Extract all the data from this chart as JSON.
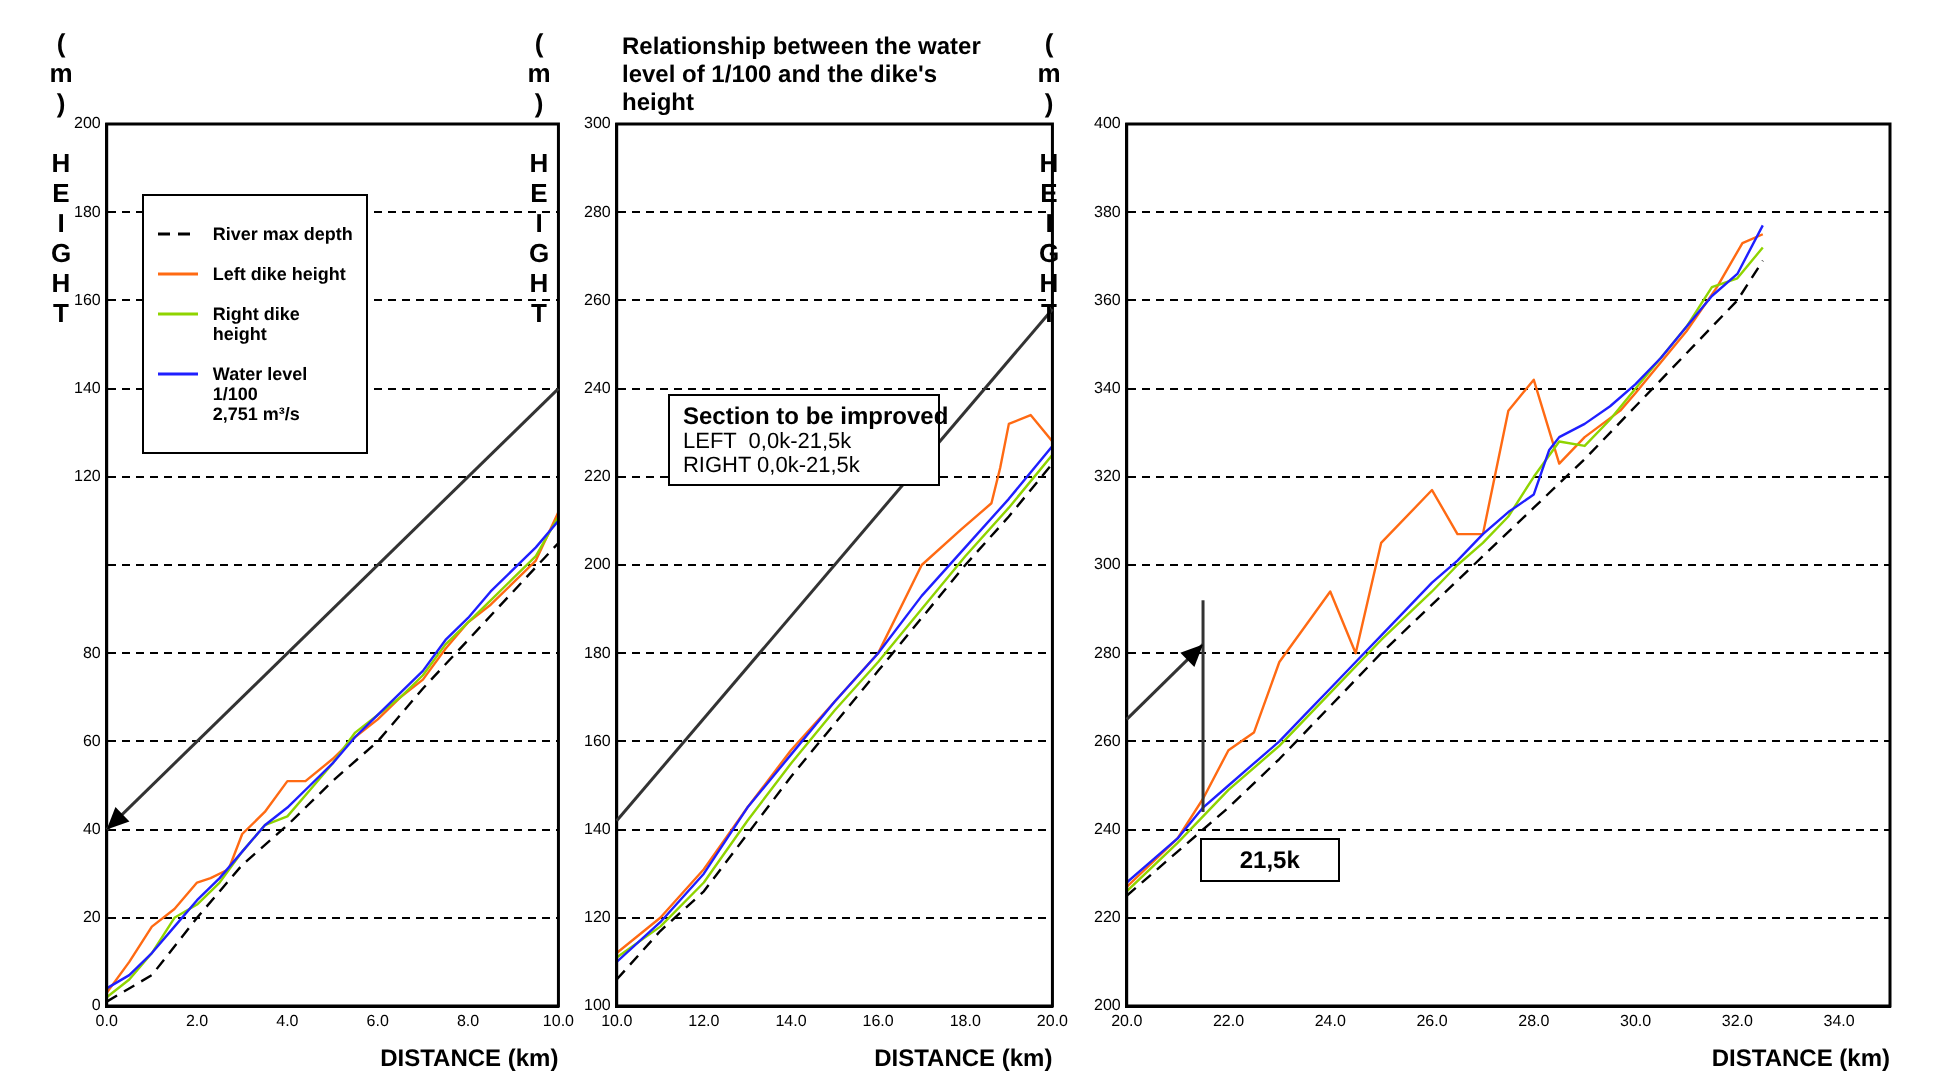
{
  "chart_data": [
    {
      "type": "line",
      "xlabel": "DISTANCE (km)",
      "ylabel": "(m) HEIGHT",
      "xlim": [
        0,
        10
      ],
      "ylim": [
        0,
        200
      ],
      "xticks": [
        {
          "value": 0,
          "label": "0.0"
        },
        {
          "value": 2,
          "label": "2.0"
        },
        {
          "value": 4,
          "label": "4.0"
        },
        {
          "value": 6,
          "label": "6.0"
        },
        {
          "value": 8,
          "label": "8.0"
        },
        {
          "value": 10,
          "label": "10.0"
        }
      ],
      "yticks": [
        0,
        20,
        40,
        60,
        80,
        {
          "value": 100,
          "label": null
        },
        120,
        140,
        160,
        180,
        200
      ],
      "grid": "y",
      "legend": "top left",
      "series": [
        {
          "name": "River max depth",
          "color": "#000000",
          "line_style": "dashed",
          "x": [
            0,
            1,
            2,
            3,
            4,
            5,
            6,
            7,
            8,
            9,
            10
          ],
          "values": [
            1,
            7,
            20,
            32,
            41,
            51,
            60,
            72,
            83,
            94,
            105
          ]
        },
        {
          "name": "Left dike height",
          "color": "#ff6a13",
          "x": [
            0,
            0.5,
            1,
            1.5,
            2,
            2.3,
            2.7,
            3,
            3.5,
            4,
            4.4,
            5,
            5.5,
            6,
            6.5,
            7,
            7.5,
            8,
            8.5,
            9,
            9.5,
            10
          ],
          "values": [
            3,
            10,
            18,
            22,
            28,
            29,
            31,
            39,
            44,
            51,
            51,
            56,
            61,
            65,
            70,
            74,
            81,
            87,
            91,
            96,
            101,
            112
          ]
        },
        {
          "name": "Right dike height",
          "color": "#8fd400",
          "x": [
            0,
            0.5,
            1,
            1.5,
            2,
            2.5,
            3,
            3.5,
            4,
            4.5,
            5,
            5.5,
            6,
            6.5,
            7,
            7.5,
            8,
            8.5,
            9,
            9.5,
            10
          ],
          "values": [
            2,
            6,
            12,
            20,
            23,
            28,
            35,
            41,
            43,
            49,
            55,
            62,
            66,
            70,
            75,
            82,
            87,
            92,
            97,
            102,
            111
          ]
        },
        {
          "name": "Water level 1/100\n2,751 m³/s",
          "color": "#1f1fff",
          "x": [
            0,
            0.5,
            1,
            1.5,
            2,
            2.5,
            3,
            3.5,
            4,
            4.5,
            5,
            5.5,
            6,
            6.5,
            7,
            7.5,
            8,
            8.5,
            9,
            9.5,
            10
          ],
          "values": [
            4,
            7,
            12,
            18,
            24,
            29,
            35,
            41,
            45,
            50,
            55,
            61,
            66,
            71,
            76,
            83,
            88,
            94,
            99,
            104,
            110
          ]
        }
      ]
    },
    {
      "type": "line",
      "title": "Relationship between the water level of 1/100 and the dike's height",
      "xlabel": "DISTANCE (km)",
      "ylabel": "(m) HEIGHT",
      "xlim": [
        10,
        20
      ],
      "ylim": [
        100,
        300
      ],
      "xticks": [
        {
          "value": 10,
          "label": "10.0"
        },
        {
          "value": 12,
          "label": "12.0"
        },
        {
          "value": 14,
          "label": "14.0"
        },
        {
          "value": 16,
          "label": "16.0"
        },
        {
          "value": 18,
          "label": "18.0"
        },
        {
          "value": 20,
          "label": "20.0"
        }
      ],
      "yticks": [
        100,
        120,
        140,
        160,
        180,
        200,
        220,
        240,
        260,
        280,
        300
      ],
      "grid": "y",
      "annotations": [
        "Section to be improved",
        "LEFT  0,0k-21,5k",
        "RIGHT 0,0k-21,5k"
      ],
      "series": [
        {
          "color": "#000000",
          "line_style": "dashed",
          "x": [
            10,
            11,
            12,
            13,
            14,
            15,
            16,
            17,
            18,
            19,
            20
          ],
          "values": [
            106,
            117,
            126,
            139,
            152,
            164,
            176,
            188,
            200,
            211,
            223
          ]
        },
        {
          "color": "#ff6a13",
          "x": [
            10,
            11,
            12,
            13,
            14,
            15,
            16,
            16.1,
            17,
            17.9,
            18.6,
            18.8,
            19,
            19.5,
            20
          ],
          "values": [
            112,
            120,
            131,
            145,
            158,
            169,
            180,
            182,
            200,
            208,
            214,
            222,
            232,
            234,
            228
          ]
        },
        {
          "color": "#8fd400",
          "x": [
            10,
            11,
            12,
            13,
            14,
            15,
            16,
            17,
            18,
            19,
            20
          ],
          "values": [
            111,
            118,
            128,
            142,
            155,
            167,
            178,
            190,
            202,
            213,
            225
          ]
        },
        {
          "color": "#1f1fff",
          "x": [
            10,
            11,
            12,
            13,
            14,
            15,
            16,
            17,
            18,
            19,
            20
          ],
          "values": [
            110,
            119,
            130,
            145,
            157,
            169,
            180,
            193,
            204,
            215,
            227
          ]
        }
      ]
    },
    {
      "type": "line",
      "xlabel": "DISTANCE (km)",
      "ylabel": "(m) HEIGHT",
      "xlim": [
        20,
        35
      ],
      "ylim": [
        200,
        400
      ],
      "xticks": [
        {
          "value": 20,
          "label": "20.0"
        },
        {
          "value": 22,
          "label": "22.0"
        },
        {
          "value": 24,
          "label": "24.0"
        },
        {
          "value": 26,
          "label": "26.0"
        },
        {
          "value": 28,
          "label": "28.0"
        },
        {
          "value": 30,
          "label": "30.0"
        },
        {
          "value": 32,
          "label": "32.0"
        },
        {
          "value": 34,
          "label": "34.0"
        }
      ],
      "yticks": [
        200,
        220,
        240,
        260,
        280,
        300,
        320,
        340,
        360,
        380,
        400
      ],
      "grid": "y",
      "annotations": [
        "21,5k"
      ],
      "series": [
        {
          "color": "#000000",
          "line_style": "dashed",
          "x": [
            20,
            21,
            22,
            23,
            24,
            25,
            26,
            27,
            28,
            29,
            30,
            31,
            32,
            32.5
          ],
          "values": [
            225,
            235,
            245,
            256,
            268,
            280,
            291,
            302,
            313,
            324,
            336,
            348,
            360,
            369
          ]
        },
        {
          "color": "#ff6a13",
          "x": [
            20,
            21,
            21.5,
            22,
            22.5,
            23,
            24,
            24.5,
            25,
            26,
            26.5,
            27,
            27.5,
            28,
            28.5,
            29,
            29.7,
            30,
            31,
            31.6,
            32.1,
            32.5
          ],
          "values": [
            227,
            238,
            247,
            258,
            262,
            278,
            294,
            280,
            305,
            317,
            307,
            307,
            335,
            342,
            323,
            329,
            335,
            339,
            353,
            363,
            373,
            375
          ]
        },
        {
          "color": "#8fd400",
          "x": [
            20,
            21,
            22,
            23,
            24,
            25,
            26,
            26.5,
            27,
            27.5,
            28,
            28.5,
            29,
            29.5,
            30,
            30.5,
            31,
            31.5,
            32,
            32.5
          ],
          "values": [
            226,
            237,
            249,
            259,
            271,
            283,
            294,
            300,
            305,
            311,
            320,
            328,
            327,
            333,
            340,
            347,
            354,
            363,
            365,
            372
          ]
        },
        {
          "color": "#1f1fff",
          "x": [
            20,
            21,
            21.5,
            22,
            22.5,
            23,
            23.5,
            24,
            24.5,
            25,
            25.5,
            26,
            26.5,
            27,
            27.5,
            28,
            28.3,
            28.5,
            29,
            29.5,
            30,
            30.5,
            31,
            31.5,
            32,
            32.5
          ],
          "values": [
            228,
            238,
            245,
            250,
            255,
            260,
            266,
            272,
            278,
            284,
            290,
            296,
            301,
            307,
            312,
            316,
            326,
            329,
            332,
            336,
            341,
            347,
            354,
            361,
            366,
            377
          ]
        }
      ]
    }
  ]
}
